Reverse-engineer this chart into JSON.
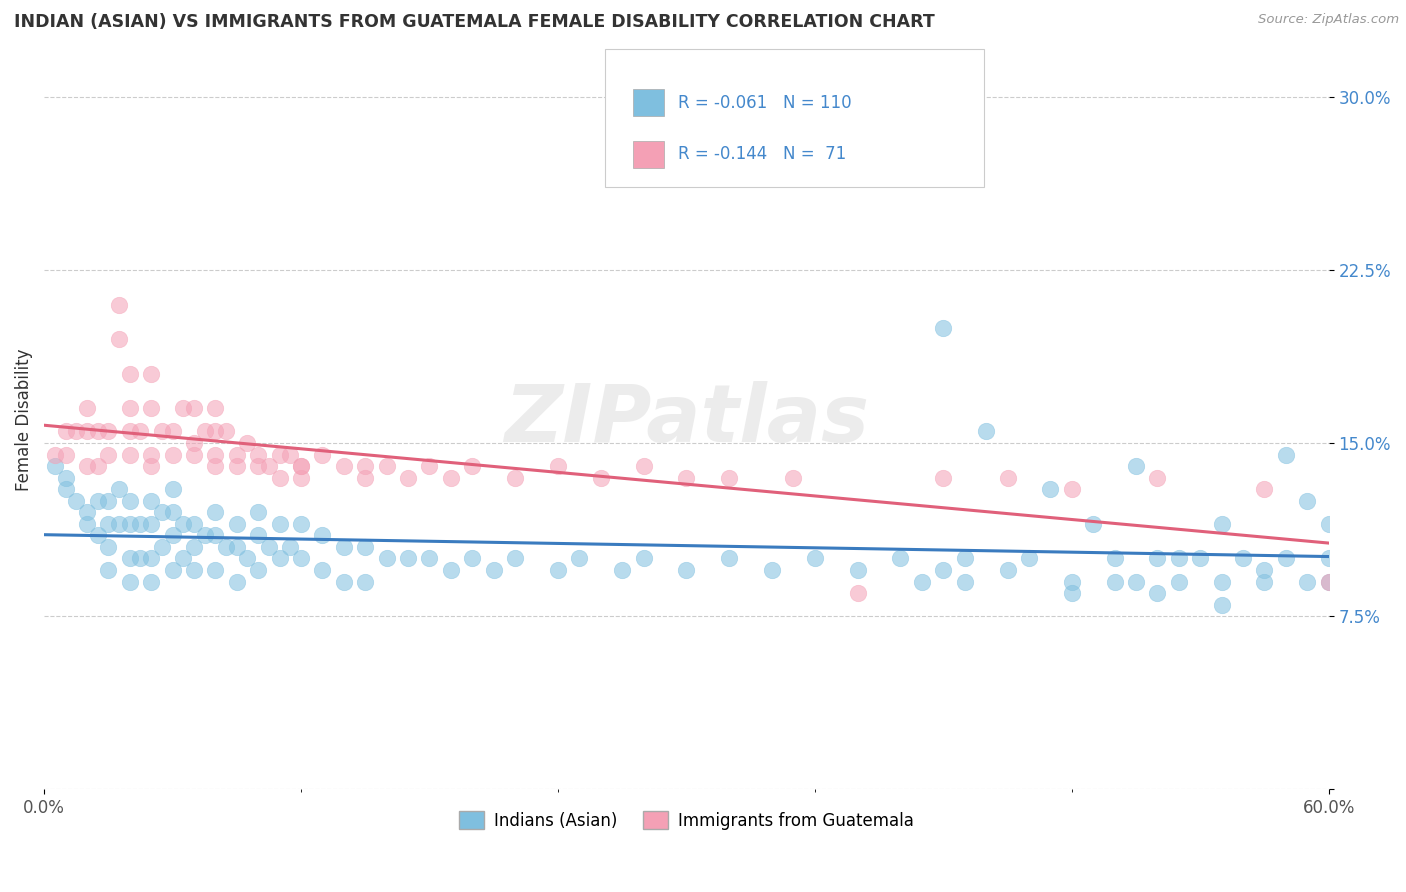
{
  "title": "INDIAN (ASIAN) VS IMMIGRANTS FROM GUATEMALA FEMALE DISABILITY CORRELATION CHART",
  "source": "Source: ZipAtlas.com",
  "ylabel": "Female Disability",
  "xlim": [
    0.0,
    0.6
  ],
  "ylim": [
    0.0,
    0.32
  ],
  "ytick_vals": [
    0.0,
    0.075,
    0.15,
    0.225,
    0.3
  ],
  "ytick_labels": [
    "",
    "7.5%",
    "15.0%",
    "22.5%",
    "30.0%"
  ],
  "blue_color": "#7fbfdf",
  "pink_color": "#f4a0b5",
  "blue_line_color": "#3a7bbf",
  "pink_line_color": "#e0607a",
  "R_blue": -0.061,
  "N_blue": 110,
  "R_pink": -0.144,
  "N_pink": 71,
  "watermark": "ZIPatlas",
  "legend_label_blue": "Indians (Asian)",
  "legend_label_pink": "Immigrants from Guatemala",
  "blue_x": [
    0.005,
    0.01,
    0.01,
    0.015,
    0.02,
    0.02,
    0.025,
    0.025,
    0.03,
    0.03,
    0.03,
    0.03,
    0.035,
    0.035,
    0.04,
    0.04,
    0.04,
    0.04,
    0.045,
    0.045,
    0.05,
    0.05,
    0.05,
    0.05,
    0.055,
    0.055,
    0.06,
    0.06,
    0.06,
    0.06,
    0.065,
    0.065,
    0.07,
    0.07,
    0.07,
    0.075,
    0.08,
    0.08,
    0.08,
    0.085,
    0.09,
    0.09,
    0.09,
    0.095,
    0.1,
    0.1,
    0.1,
    0.105,
    0.11,
    0.11,
    0.115,
    0.12,
    0.12,
    0.13,
    0.13,
    0.14,
    0.14,
    0.15,
    0.15,
    0.16,
    0.17,
    0.18,
    0.19,
    0.2,
    0.21,
    0.22,
    0.24,
    0.25,
    0.27,
    0.28,
    0.3,
    0.32,
    0.34,
    0.36,
    0.38,
    0.4,
    0.42,
    0.43,
    0.45,
    0.46,
    0.48,
    0.5,
    0.51,
    0.52,
    0.53,
    0.54,
    0.55,
    0.56,
    0.57,
    0.58,
    0.59,
    0.6,
    0.42,
    0.44,
    0.47,
    0.49,
    0.51,
    0.53,
    0.55,
    0.58,
    0.59,
    0.6,
    0.41,
    0.43,
    0.48,
    0.5,
    0.52,
    0.55,
    0.57,
    0.6
  ],
  "blue_y": [
    0.14,
    0.135,
    0.13,
    0.125,
    0.12,
    0.115,
    0.125,
    0.11,
    0.125,
    0.115,
    0.105,
    0.095,
    0.13,
    0.115,
    0.125,
    0.115,
    0.1,
    0.09,
    0.115,
    0.1,
    0.125,
    0.115,
    0.1,
    0.09,
    0.12,
    0.105,
    0.13,
    0.12,
    0.11,
    0.095,
    0.115,
    0.1,
    0.115,
    0.105,
    0.095,
    0.11,
    0.12,
    0.11,
    0.095,
    0.105,
    0.115,
    0.105,
    0.09,
    0.1,
    0.12,
    0.11,
    0.095,
    0.105,
    0.115,
    0.1,
    0.105,
    0.115,
    0.1,
    0.11,
    0.095,
    0.105,
    0.09,
    0.105,
    0.09,
    0.1,
    0.1,
    0.1,
    0.095,
    0.1,
    0.095,
    0.1,
    0.095,
    0.1,
    0.095,
    0.1,
    0.095,
    0.1,
    0.095,
    0.1,
    0.095,
    0.1,
    0.095,
    0.1,
    0.095,
    0.1,
    0.09,
    0.1,
    0.09,
    0.1,
    0.09,
    0.1,
    0.09,
    0.1,
    0.09,
    0.1,
    0.09,
    0.115,
    0.2,
    0.155,
    0.13,
    0.115,
    0.14,
    0.1,
    0.115,
    0.145,
    0.125,
    0.1,
    0.09,
    0.09,
    0.085,
    0.09,
    0.085,
    0.08,
    0.095,
    0.09
  ],
  "pink_x": [
    0.005,
    0.01,
    0.01,
    0.015,
    0.02,
    0.02,
    0.02,
    0.025,
    0.025,
    0.03,
    0.03,
    0.035,
    0.035,
    0.04,
    0.04,
    0.04,
    0.04,
    0.045,
    0.05,
    0.05,
    0.05,
    0.05,
    0.055,
    0.06,
    0.06,
    0.065,
    0.07,
    0.07,
    0.07,
    0.075,
    0.08,
    0.08,
    0.08,
    0.08,
    0.085,
    0.09,
    0.09,
    0.095,
    0.1,
    0.1,
    0.105,
    0.11,
    0.11,
    0.115,
    0.12,
    0.12,
    0.12,
    0.13,
    0.14,
    0.15,
    0.15,
    0.16,
    0.17,
    0.18,
    0.19,
    0.2,
    0.22,
    0.24,
    0.26,
    0.28,
    0.3,
    0.32,
    0.35,
    0.38,
    0.42,
    0.45,
    0.48,
    0.52,
    0.57,
    0.6,
    0.62
  ],
  "pink_y": [
    0.145,
    0.155,
    0.145,
    0.155,
    0.165,
    0.155,
    0.14,
    0.155,
    0.14,
    0.155,
    0.145,
    0.21,
    0.195,
    0.165,
    0.18,
    0.155,
    0.145,
    0.155,
    0.165,
    0.18,
    0.145,
    0.14,
    0.155,
    0.155,
    0.145,
    0.165,
    0.165,
    0.15,
    0.145,
    0.155,
    0.155,
    0.145,
    0.14,
    0.165,
    0.155,
    0.145,
    0.14,
    0.15,
    0.145,
    0.14,
    0.14,
    0.145,
    0.135,
    0.145,
    0.14,
    0.135,
    0.14,
    0.145,
    0.14,
    0.14,
    0.135,
    0.14,
    0.135,
    0.14,
    0.135,
    0.14,
    0.135,
    0.14,
    0.135,
    0.14,
    0.135,
    0.135,
    0.135,
    0.085,
    0.135,
    0.135,
    0.13,
    0.135,
    0.13,
    0.09,
    0.085
  ]
}
